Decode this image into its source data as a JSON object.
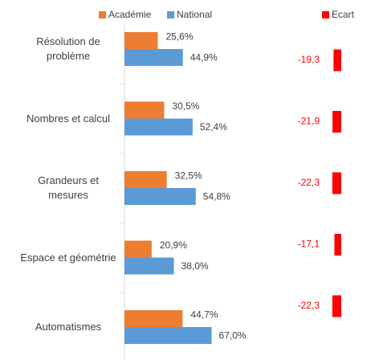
{
  "chart_data": [
    {
      "type": "hbar",
      "categories": [
        "Résolution de problème",
        "Nombres et calcul",
        "Grandeurs et mesures",
        "Espace et géométrie",
        "Automatismes"
      ],
      "series": [
        {
          "name": "Académie",
          "color": "#ED7D31",
          "values": [
            25.6,
            30.5,
            32.5,
            20.9,
            44.7
          ],
          "value_labels": [
            "25,6%",
            "30,5%",
            "32,5%",
            "20,9%",
            "44,7%"
          ]
        },
        {
          "name": "National",
          "color": "#5B9BD5",
          "values": [
            44.9,
            52.4,
            54.8,
            38.0,
            67.0
          ],
          "value_labels": [
            "44,9%",
            "52,4%",
            "54,8%",
            "38,0%",
            "67,0%"
          ]
        }
      ]
    },
    {
      "type": "ecart",
      "series": [
        {
          "name": "Ecart",
          "color": "#FF0000",
          "values": [
            -19.3,
            -21.9,
            -22.3,
            -17.1,
            -22.3
          ],
          "value_labels": [
            "-19,3",
            "-21,9",
            "-22,3",
            "-17,1",
            "-22,3"
          ]
        }
      ]
    }
  ]
}
